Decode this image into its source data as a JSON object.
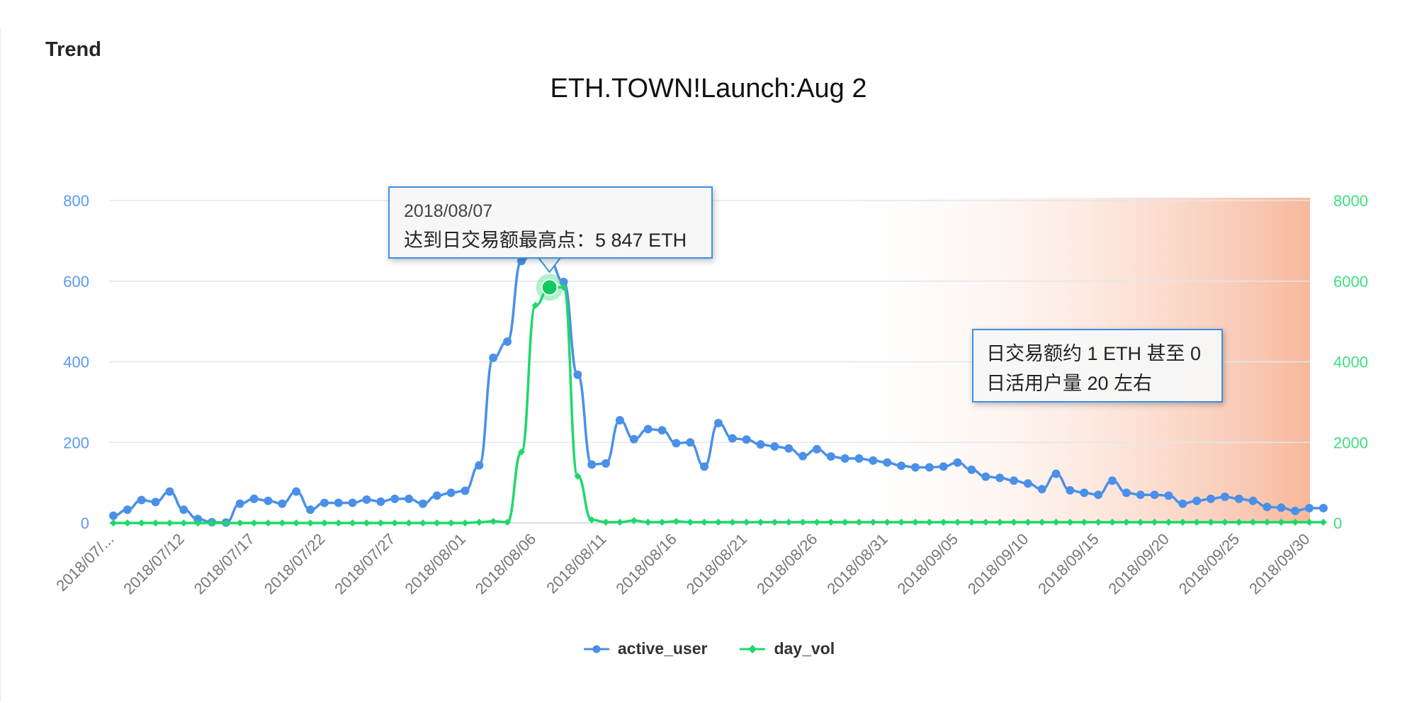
{
  "panel": {
    "title": "Trend"
  },
  "chart_data": {
    "type": "line",
    "title": "ETH.TOWN!Launch:Aug 2",
    "start_date": "2018-07-07",
    "end_date": "2018-09-30",
    "x_labels": [
      "2018/07/...",
      "2018/07/12",
      "2018/07/17",
      "2018/07/22",
      "2018/07/27",
      "2018/08/01",
      "2018/08/06",
      "2018/08/11",
      "2018/08/16",
      "2018/08/21",
      "2018/08/26",
      "2018/08/31",
      "2018/09/05",
      "2018/09/10",
      "2018/09/15",
      "2018/09/20",
      "2018/09/25",
      "2018/09/30"
    ],
    "y_left": {
      "ticks": [
        "0",
        "200",
        "400",
        "600",
        "800"
      ],
      "range": [
        0,
        800
      ],
      "color": "#5b9bf0"
    },
    "y_right": {
      "ticks": [
        "0",
        "2000",
        "4000",
        "6000",
        "8000"
      ],
      "range": [
        0,
        8000
      ],
      "color": "#3ee07f"
    },
    "series": [
      {
        "name": "active_user",
        "axis": "left",
        "color": "#4a90e8",
        "values": [
          18,
          33,
          57,
          52,
          78,
          33,
          10,
          2,
          1,
          48,
          60,
          55,
          48,
          78,
          33,
          50,
          50,
          50,
          58,
          53,
          60,
          60,
          48,
          68,
          75,
          80,
          143,
          410,
          450,
          650,
          680,
          650,
          598,
          368,
          145,
          148,
          255,
          208,
          233,
          230,
          198,
          200,
          140,
          248,
          210,
          207,
          195,
          190,
          185,
          166,
          183,
          165,
          160,
          160,
          155,
          150,
          142,
          138,
          138,
          140,
          150,
          132,
          115,
          112,
          105,
          98,
          84,
          122,
          81,
          75,
          70,
          105,
          75,
          70,
          70,
          68,
          48,
          55,
          60,
          65,
          60,
          55,
          40,
          38,
          30,
          37,
          37
        ]
      },
      {
        "name": "day_vol",
        "axis": "right",
        "color": "#1fd86a",
        "values": [
          0,
          0,
          0,
          0,
          0,
          0,
          0,
          0,
          0,
          0,
          0,
          0,
          0,
          0,
          0,
          0,
          0,
          0,
          0,
          0,
          0,
          0,
          0,
          0,
          0,
          0,
          20,
          40,
          20,
          1760,
          5400,
          5847,
          5847,
          1160,
          80,
          20,
          20,
          60,
          20,
          20,
          40,
          20,
          20,
          20,
          20,
          20,
          20,
          20,
          20,
          20,
          20,
          20,
          20,
          20,
          20,
          20,
          20,
          20,
          20,
          20,
          20,
          20,
          20,
          20,
          20,
          20,
          20,
          20,
          20,
          20,
          20,
          20,
          20,
          20,
          20,
          20,
          20,
          20,
          20,
          20,
          20,
          20,
          20,
          20,
          20,
          20,
          20
        ]
      }
    ],
    "highlight_from_date": "2018-08-26",
    "highlight_color": "#f7b89c",
    "peak_marker_date": "2018-08-07",
    "legend_position": "bottom",
    "grid": true
  },
  "tooltips": {
    "peak": {
      "date": "2018/08/07",
      "text": "达到日交易额最高点：5 847 ETH"
    },
    "tail": {
      "line1": "日交易额约 1 ETH 甚至 0",
      "line2": "日活用户量 20 左右"
    }
  }
}
